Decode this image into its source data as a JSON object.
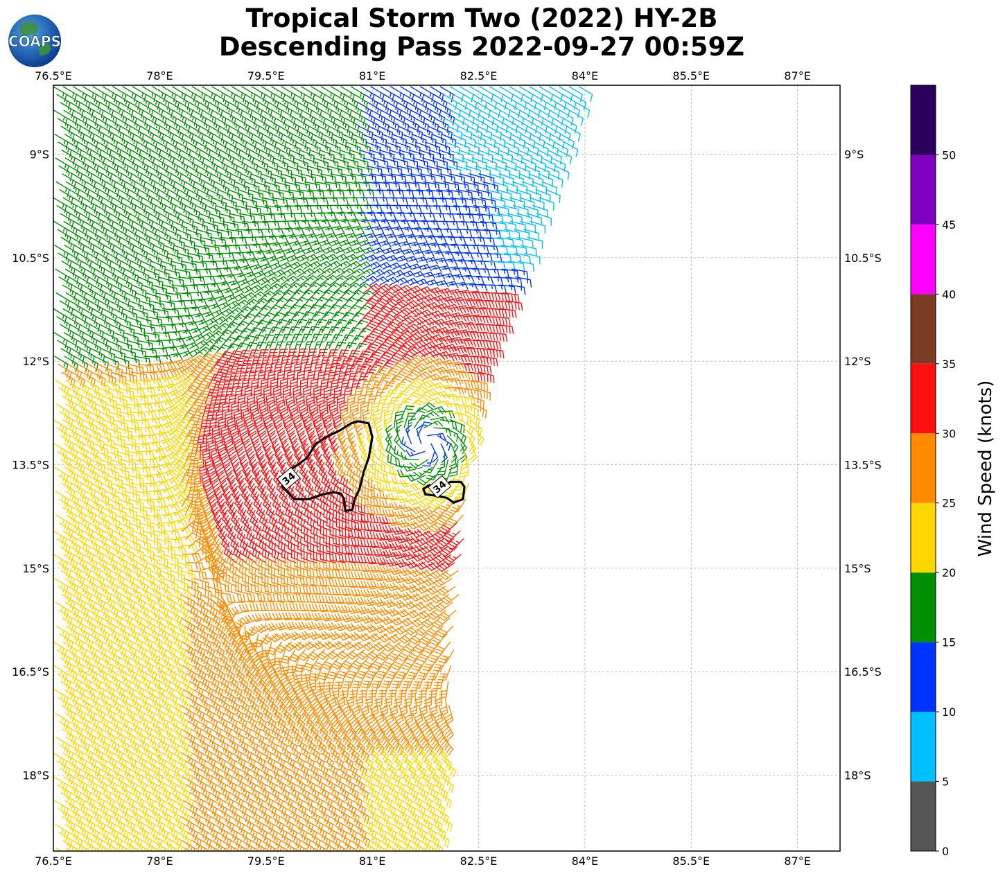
{
  "title": {
    "line1": "Tropical Storm Two (2022) HY-2B",
    "line2": "Descending Pass 2022-09-27 00:59Z"
  },
  "logo": {
    "text": "COAPS",
    "icon": "globe-logo-icon"
  },
  "map": {
    "lon_range": [
      76.5,
      87.6
    ],
    "lat_range": [
      -19.1,
      -8.0
    ],
    "lon_ticks": [
      {
        "value": 76.5,
        "label": "76.5°E"
      },
      {
        "value": 78.0,
        "label": "78°E"
      },
      {
        "value": 79.5,
        "label": "79.5°E"
      },
      {
        "value": 81.0,
        "label": "81°E"
      },
      {
        "value": 82.5,
        "label": "82.5°E"
      },
      {
        "value": 84.0,
        "label": "84°E"
      },
      {
        "value": 85.5,
        "label": "85.5°E"
      },
      {
        "value": 87.0,
        "label": "87°E"
      }
    ],
    "lat_ticks": [
      {
        "value": -9.0,
        "label": "9°S"
      },
      {
        "value": -10.5,
        "label": "10.5°S"
      },
      {
        "value": -12.0,
        "label": "12°S"
      },
      {
        "value": -13.5,
        "label": "13.5°S"
      },
      {
        "value": -15.0,
        "label": "15°S"
      },
      {
        "value": -16.5,
        "label": "16.5°S"
      },
      {
        "value": -18.0,
        "label": "18°S"
      }
    ],
    "grid": true,
    "storm_center": {
      "lon": 81.75,
      "lat": -13.2
    },
    "swath": {
      "west_lon": 76.5,
      "east_edge": [
        {
          "lat": -8.0,
          "lon": 84.0
        },
        {
          "lat": -12.3,
          "lon": 82.5
        },
        {
          "lat": -19.1,
          "lon": 81.9
        }
      ]
    },
    "contour": {
      "level": 34,
      "label": "34",
      "polygons": [
        [
          [
            80.8,
            -12.87
          ],
          [
            80.95,
            -12.9
          ],
          [
            81.0,
            -13.1
          ],
          [
            80.95,
            -13.4
          ],
          [
            80.88,
            -13.6
          ],
          [
            80.82,
            -13.85
          ],
          [
            80.75,
            -14.0
          ],
          [
            80.72,
            -14.15
          ],
          [
            80.62,
            -14.17
          ],
          [
            80.6,
            -14.0
          ],
          [
            80.56,
            -13.92
          ],
          [
            80.45,
            -13.9
          ],
          [
            80.3,
            -13.93
          ],
          [
            80.1,
            -14.0
          ],
          [
            79.9,
            -14.0
          ],
          [
            79.73,
            -13.82
          ],
          [
            79.8,
            -13.6
          ],
          [
            79.95,
            -13.5
          ],
          [
            80.08,
            -13.4
          ],
          [
            80.2,
            -13.2
          ],
          [
            80.35,
            -13.1
          ],
          [
            80.55,
            -13.0
          ],
          [
            80.7,
            -12.9
          ]
        ],
        [
          [
            82.25,
            -13.75
          ],
          [
            82.3,
            -13.82
          ],
          [
            82.28,
            -14.0
          ],
          [
            82.15,
            -14.05
          ],
          [
            82.05,
            -13.98
          ],
          [
            81.9,
            -13.95
          ],
          [
            81.75,
            -13.93
          ],
          [
            81.72,
            -13.85
          ],
          [
            81.8,
            -13.8
          ],
          [
            82.0,
            -13.8
          ],
          [
            82.1,
            -13.75
          ]
        ]
      ],
      "label_positions": [
        {
          "lon": 79.82,
          "lat": -13.7
        },
        {
          "lon": 81.95,
          "lat": -13.82
        }
      ]
    }
  },
  "colorbar": {
    "label": "Wind Speed (knots)",
    "bins": [
      {
        "min": 0,
        "max": 5,
        "color": "#555555"
      },
      {
        "min": 5,
        "max": 10,
        "color": "#00bfff"
      },
      {
        "min": 10,
        "max": 15,
        "color": "#0033ff"
      },
      {
        "min": 15,
        "max": 20,
        "color": "#008f00"
      },
      {
        "min": 20,
        "max": 25,
        "color": "#ffd700"
      },
      {
        "min": 25,
        "max": 30,
        "color": "#ff8c00"
      },
      {
        "min": 30,
        "max": 35,
        "color": "#ff1010"
      },
      {
        "min": 35,
        "max": 40,
        "color": "#7b3b24"
      },
      {
        "min": 40,
        "max": 45,
        "color": "#ff00ff"
      },
      {
        "min": 45,
        "max": 50,
        "color": "#8000c0"
      },
      {
        "min": 50,
        "max": 55,
        "color": "#2a005c"
      }
    ],
    "ticks": [
      "0",
      "5",
      "10",
      "15",
      "20",
      "25",
      "30",
      "35",
      "40",
      "45",
      "50"
    ]
  }
}
